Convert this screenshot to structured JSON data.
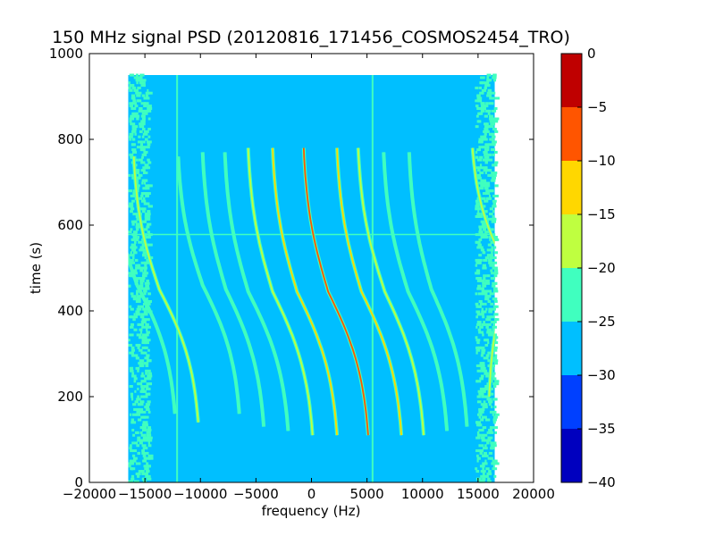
{
  "chart_data": {
    "type": "heatmap",
    "title": "150 MHz signal PSD (20120816_171456_COSMOS2454_TRO)",
    "xlabel": "frequency (Hz)",
    "ylabel": "time (s)",
    "xlim": [
      -20000,
      20000
    ],
    "ylim": [
      0,
      1000
    ],
    "x_ticks": [
      -20000,
      -15000,
      -10000,
      -5000,
      0,
      5000,
      10000,
      15000,
      20000
    ],
    "y_ticks": [
      0,
      200,
      400,
      600,
      800,
      1000
    ],
    "data_extent": {
      "x": [
        -16500,
        16500
      ],
      "y": [
        0,
        950
      ]
    },
    "background_level": -27.5,
    "colormap": "jet",
    "colorbar": {
      "range": [
        -40,
        0
      ],
      "levels": [
        -40,
        -35,
        -30,
        -25,
        -20,
        -15,
        -10,
        -5,
        0
      ],
      "ticks": [
        0,
        -5,
        -10,
        -15,
        -20,
        -25,
        -30,
        -35,
        -40
      ],
      "colors": [
        "#0000bf",
        "#0040ff",
        "#00bfff",
        "#40ffbf",
        "#bfff40",
        "#ffd700",
        "#ff5500",
        "#bf0000"
      ]
    },
    "vertical_lines": [
      {
        "x": -12100,
        "y": [
          0,
          950
        ],
        "level": -22.5
      },
      {
        "x": 5500,
        "y": [
          0,
          950
        ],
        "level": -22.5
      }
    ],
    "horizontal_lines": [
      {
        "y": 578,
        "x": [
          -16500,
          16500
        ],
        "level": -22.5
      }
    ],
    "traces": [
      {
        "y_start": 110,
        "y_end": 780,
        "x_at_start": 5100,
        "x_at_end": -700,
        "x_at_center": 1500,
        "peak_level": -7.5
      },
      {
        "y_start": 110,
        "y_end": 780,
        "x_at_start": 2300,
        "x_at_end": -3500,
        "x_at_center": -1300,
        "peak_level": -12.5
      },
      {
        "y_start": 110,
        "y_end": 780,
        "x_at_start": 8100,
        "x_at_end": 2300,
        "x_at_center": 4500,
        "peak_level": -12.5
      },
      {
        "y_start": 110,
        "y_end": 780,
        "x_at_start": 100,
        "x_at_end": -5700,
        "x_at_center": -3500,
        "peak_level": -17.5
      },
      {
        "y_start": 110,
        "y_end": 780,
        "x_at_start": 10100,
        "x_at_end": 4200,
        "x_at_center": 6600,
        "peak_level": -17.5
      },
      {
        "y_start": 120,
        "y_end": 770,
        "x_at_start": -2100,
        "x_at_end": -7800,
        "x_at_center": -5700,
        "peak_level": -22.5
      },
      {
        "y_start": 120,
        "y_end": 770,
        "x_at_start": 12200,
        "x_at_end": 6500,
        "x_at_center": 8700,
        "peak_level": -22.5
      },
      {
        "y_start": 130,
        "y_end": 770,
        "x_at_start": -4300,
        "x_at_end": -9800,
        "x_at_center": -7700,
        "peak_level": -22.5
      },
      {
        "y_start": 130,
        "y_end": 770,
        "x_at_start": 14000,
        "x_at_end": 8800,
        "x_at_center": 10800,
        "peak_level": -22.5
      },
      {
        "y_start": 140,
        "y_end": 760,
        "x_at_start": -10200,
        "x_at_end": -16000,
        "x_at_center": -13700,
        "peak_level": -17.5
      },
      {
        "y_start": 160,
        "y_end": 760,
        "x_at_start": -12300,
        "x_at_end": -18000,
        "x_at_center": -15700,
        "peak_level": -22.5
      },
      {
        "y_start": 200,
        "y_end": 780,
        "x_at_start": 16000,
        "x_at_end": 14500,
        "x_at_center": 17800,
        "peak_level": -17.5
      },
      {
        "y_start": 160,
        "y_end": 760,
        "x_at_start": -6500,
        "x_at_end": -12000,
        "x_at_center": -9800,
        "peak_level": -22.5
      }
    ]
  }
}
